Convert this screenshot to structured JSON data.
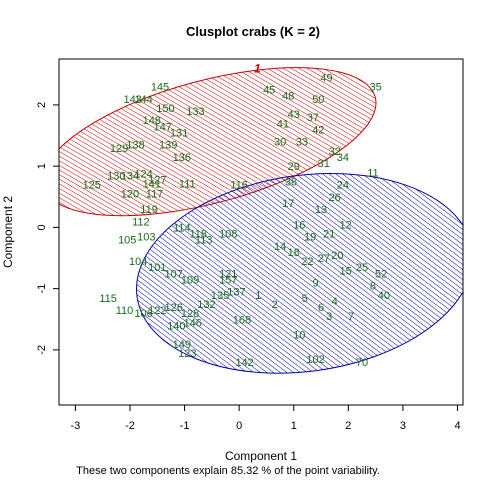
{
  "chart_data": {
    "type": "scatter",
    "title": "Clusplot crabs (K = 2)",
    "xlabel": "Component 1",
    "ylabel": "Component 2",
    "caption": "These two components explain 85.32 % of the point variability.",
    "xlim": [
      -3.3,
      4.1
    ],
    "ylim": [
      -2.9,
      2.75
    ],
    "xticks": [
      -3,
      -2,
      -1,
      0,
      1,
      2,
      3,
      4
    ],
    "yticks": [
      -2,
      -1,
      0,
      1,
      2
    ],
    "clusters": [
      {
        "id": "1",
        "color": "#cc0000",
        "ellipse": {
          "cx": -0.55,
          "cy": 1.4,
          "rx": 3.15,
          "ry": 1.0,
          "angle_deg": 15
        }
      },
      {
        "id": "2",
        "color": "#0000aa",
        "ellipse": {
          "cx": 1.2,
          "cy": -0.75,
          "rx": 3.1,
          "ry": 1.6,
          "angle_deg": 8
        }
      }
    ],
    "points": [
      {
        "label": "145",
        "x": -1.45,
        "y": 2.3
      },
      {
        "label": "143",
        "x": -1.95,
        "y": 2.1
      },
      {
        "label": "144",
        "x": -1.75,
        "y": 2.1
      },
      {
        "label": "150",
        "x": -1.35,
        "y": 1.95
      },
      {
        "label": "133",
        "x": -0.8,
        "y": 1.9
      },
      {
        "label": "148",
        "x": -1.6,
        "y": 1.75
      },
      {
        "label": "147",
        "x": -1.4,
        "y": 1.65
      },
      {
        "label": "131",
        "x": -1.1,
        "y": 1.55
      },
      {
        "label": "129",
        "x": -2.2,
        "y": 1.3
      },
      {
        "label": "138",
        "x": -1.9,
        "y": 1.35
      },
      {
        "label": "139",
        "x": -1.3,
        "y": 1.35
      },
      {
        "label": "136",
        "x": -1.05,
        "y": 1.15
      },
      {
        "label": "130",
        "x": -2.25,
        "y": 0.85
      },
      {
        "label": "134",
        "x": -2.0,
        "y": 0.85
      },
      {
        "label": "124",
        "x": -1.75,
        "y": 0.88
      },
      {
        "label": "127",
        "x": -1.5,
        "y": 0.78
      },
      {
        "label": "125",
        "x": -2.7,
        "y": 0.7
      },
      {
        "label": "141",
        "x": -1.6,
        "y": 0.72
      },
      {
        "label": "111",
        "x": -0.95,
        "y": 0.72
      },
      {
        "label": "120",
        "x": -2.0,
        "y": 0.55
      },
      {
        "label": "117",
        "x": -1.55,
        "y": 0.55
      },
      {
        "label": "116",
        "x": 0.0,
        "y": 0.7
      },
      {
        "label": "119",
        "x": -1.65,
        "y": 0.3
      },
      {
        "label": "112",
        "x": -1.8,
        "y": 0.1
      },
      {
        "label": "105",
        "x": -2.05,
        "y": -0.2
      },
      {
        "label": "103",
        "x": -1.7,
        "y": -0.15
      },
      {
        "label": "114",
        "x": -1.05,
        "y": 0.0
      },
      {
        "label": "118",
        "x": -0.75,
        "y": -0.1
      },
      {
        "label": "113",
        "x": -0.65,
        "y": -0.2
      },
      {
        "label": "108",
        "x": -0.2,
        "y": -0.1
      },
      {
        "label": "45",
        "x": 0.55,
        "y": 2.25
      },
      {
        "label": "48",
        "x": 0.9,
        "y": 2.15
      },
      {
        "label": "50",
        "x": 1.45,
        "y": 2.1
      },
      {
        "label": "49",
        "x": 1.6,
        "y": 2.45
      },
      {
        "label": "35",
        "x": 2.5,
        "y": 2.3
      },
      {
        "label": "43",
        "x": 1.0,
        "y": 1.85
      },
      {
        "label": "37",
        "x": 1.35,
        "y": 1.8
      },
      {
        "label": "41",
        "x": 0.8,
        "y": 1.7
      },
      {
        "label": "42",
        "x": 1.45,
        "y": 1.6
      },
      {
        "label": "30",
        "x": 0.75,
        "y": 1.4
      },
      {
        "label": "33",
        "x": 1.15,
        "y": 1.4
      },
      {
        "label": "32",
        "x": 1.75,
        "y": 1.25
      },
      {
        "label": "34",
        "x": 1.9,
        "y": 1.15
      },
      {
        "label": "29",
        "x": 1.0,
        "y": 1.0
      },
      {
        "label": "31",
        "x": 1.55,
        "y": 1.05
      },
      {
        "label": "11",
        "x": 2.45,
        "y": 0.9
      },
      {
        "label": "38",
        "x": 0.95,
        "y": 0.75
      },
      {
        "label": "24",
        "x": 1.9,
        "y": 0.7
      },
      {
        "label": "26",
        "x": 1.75,
        "y": 0.5
      },
      {
        "label": "17",
        "x": 0.9,
        "y": 0.4
      },
      {
        "label": "13",
        "x": 1.5,
        "y": 0.3
      },
      {
        "label": "16",
        "x": 1.1,
        "y": 0.05
      },
      {
        "label": "12",
        "x": 1.95,
        "y": 0.05
      },
      {
        "label": "19",
        "x": 1.3,
        "y": -0.15
      },
      {
        "label": "21",
        "x": 1.65,
        "y": -0.1
      },
      {
        "label": "14",
        "x": 0.75,
        "y": -0.3
      },
      {
        "label": "18",
        "x": 1.0,
        "y": -0.4
      },
      {
        "label": "20",
        "x": 1.8,
        "y": -0.45
      },
      {
        "label": "22",
        "x": 1.25,
        "y": -0.55
      },
      {
        "label": "27",
        "x": 1.55,
        "y": -0.5
      },
      {
        "label": "15",
        "x": 1.95,
        "y": -0.7
      },
      {
        "label": "25",
        "x": 2.25,
        "y": -0.65
      },
      {
        "label": "52",
        "x": 2.6,
        "y": -0.75
      },
      {
        "label": "9",
        "x": 1.4,
        "y": -0.9
      },
      {
        "label": "8",
        "x": 2.45,
        "y": -0.95
      },
      {
        "label": "40",
        "x": 2.65,
        "y": -1.1
      },
      {
        "label": "5",
        "x": 1.2,
        "y": -1.15
      },
      {
        "label": "6",
        "x": 1.5,
        "y": -1.3
      },
      {
        "label": "4",
        "x": 1.75,
        "y": -1.2
      },
      {
        "label": "2",
        "x": 0.65,
        "y": -1.25
      },
      {
        "label": "3",
        "x": 1.65,
        "y": -1.45
      },
      {
        "label": "7",
        "x": 2.05,
        "y": -1.45
      },
      {
        "label": "10",
        "x": 1.1,
        "y": -1.75
      },
      {
        "label": "1",
        "x": 0.35,
        "y": -1.1
      },
      {
        "label": "102",
        "x": 1.4,
        "y": -2.15
      },
      {
        "label": "70",
        "x": 2.25,
        "y": -2.2
      },
      {
        "label": "142",
        "x": 0.1,
        "y": -2.2
      },
      {
        "label": "104",
        "x": -1.85,
        "y": -0.55
      },
      {
        "label": "101",
        "x": -1.5,
        "y": -0.65
      },
      {
        "label": "107",
        "x": -1.2,
        "y": -0.75
      },
      {
        "label": "109",
        "x": -0.9,
        "y": -0.85
      },
      {
        "label": "121",
        "x": -0.2,
        "y": -0.75
      },
      {
        "label": "157",
        "x": -0.2,
        "y": -0.85
      },
      {
        "label": "115",
        "x": -2.4,
        "y": -1.15
      },
      {
        "label": "110",
        "x": -2.1,
        "y": -1.35
      },
      {
        "label": "106",
        "x": -1.75,
        "y": -1.4
      },
      {
        "label": "122",
        "x": -1.5,
        "y": -1.35
      },
      {
        "label": "126",
        "x": -1.2,
        "y": -1.3
      },
      {
        "label": "128",
        "x": -0.9,
        "y": -1.4
      },
      {
        "label": "132",
        "x": -0.6,
        "y": -1.25
      },
      {
        "label": "135",
        "x": -0.35,
        "y": -1.1
      },
      {
        "label": "137",
        "x": -0.05,
        "y": -1.05
      },
      {
        "label": "140",
        "x": -1.15,
        "y": -1.6
      },
      {
        "label": "146",
        "x": -0.85,
        "y": -1.55
      },
      {
        "label": "149",
        "x": -1.05,
        "y": -1.9
      },
      {
        "label": "123",
        "x": -0.95,
        "y": -2.05
      },
      {
        "label": "168",
        "x": 0.05,
        "y": -1.5
      }
    ]
  }
}
